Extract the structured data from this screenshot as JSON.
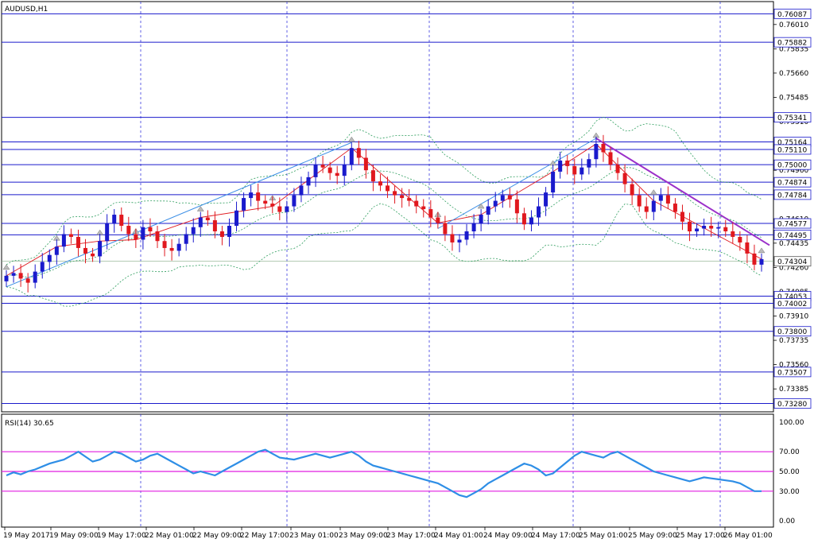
{
  "window": {
    "title": "AUDUSD,H1"
  },
  "chart_data": {
    "type": "candlestick",
    "symbol": "AUDUSD",
    "timeframe": "H1",
    "ylim": [
      0.7322,
      0.76175
    ],
    "grid": true,
    "price_ticks": [
      "0.76010",
      "0.75835",
      "0.75660",
      "0.75485",
      "0.75310",
      "0.75135",
      "0.74960",
      "0.74785",
      "0.74610",
      "0.74435",
      "0.74260",
      "0.74085",
      "0.73910",
      "0.73735",
      "0.73560",
      "0.73385"
    ],
    "levels": [
      {
        "label": "0.76087",
        "value": 0.76087
      },
      {
        "label": "0.75882",
        "value": 0.75882
      },
      {
        "label": "0.75341",
        "value": 0.75341
      },
      {
        "label": "0.75164",
        "value": 0.75164
      },
      {
        "label": "0.75110",
        "value": 0.7511
      },
      {
        "label": "0.75000",
        "value": 0.75
      },
      {
        "label": "0.74874",
        "value": 0.74874
      },
      {
        "label": "0.74784",
        "value": 0.74784
      },
      {
        "label": "0.74577",
        "value": 0.74577
      },
      {
        "label": "0.74495",
        "value": 0.74495
      },
      {
        "label": "0.74053",
        "value": 0.74053
      },
      {
        "label": "0.74002",
        "value": 0.74002
      },
      {
        "label": "0.73800",
        "value": 0.738
      },
      {
        "label": "0.73507",
        "value": 0.73507
      },
      {
        "label": "0.73280",
        "value": 0.7328
      }
    ],
    "current_price": {
      "label": "0.74304",
      "value": 0.74304
    },
    "time_labels": [
      "19 May 2017",
      "19 May 09:00",
      "19 May 17:00",
      "22 May 01:00",
      "22 May 09:00",
      "22 May 17:00",
      "23 May 01:00",
      "23 May 09:00",
      "23 May 17:00",
      "24 May 01:00",
      "24 May 09:00",
      "24 May 17:00",
      "25 May 01:00",
      "25 May 09:00",
      "25 May 17:00",
      "26 May 01:00"
    ],
    "closes": [
      0.742,
      0.7422,
      0.7418,
      0.7415,
      0.7423,
      0.743,
      0.7435,
      0.7441,
      0.745,
      0.7448,
      0.744,
      0.7436,
      0.7434,
      0.7445,
      0.7458,
      0.7464,
      0.7456,
      0.745,
      0.7446,
      0.7455,
      0.7452,
      0.7445,
      0.744,
      0.7438,
      0.7443,
      0.745,
      0.7455,
      0.7462,
      0.746,
      0.7452,
      0.7448,
      0.7456,
      0.7467,
      0.7476,
      0.748,
      0.7474,
      0.7472,
      0.747,
      0.7466,
      0.747,
      0.7478,
      0.7485,
      0.7491,
      0.75,
      0.7498,
      0.7494,
      0.7492,
      0.75,
      0.7512,
      0.7505,
      0.7496,
      0.7488,
      0.7485,
      0.7481,
      0.7478,
      0.7476,
      0.7474,
      0.747,
      0.7468,
      0.7462,
      0.7458,
      0.745,
      0.7444,
      0.7446,
      0.7452,
      0.7458,
      0.7464,
      0.747,
      0.7474,
      0.7478,
      0.7475,
      0.7465,
      0.7457,
      0.7462,
      0.747,
      0.748,
      0.7495,
      0.7503,
      0.7499,
      0.7493,
      0.7498,
      0.7504,
      0.7515,
      0.7509,
      0.75,
      0.7494,
      0.7486,
      0.7478,
      0.747,
      0.7466,
      0.7474,
      0.7478,
      0.7472,
      0.7466,
      0.7459,
      0.7452,
      0.7454,
      0.7456,
      0.7454,
      0.7455,
      0.7452,
      0.7448,
      0.7444,
      0.7436,
      0.7428,
      0.7432
    ],
    "rsi": {
      "label": "RSI(14) 30.65",
      "ylim": [
        0,
        100
      ],
      "ticks": [
        "100.00",
        "70.00",
        "50.00",
        "30.00",
        "0.00"
      ],
      "levels": [
        70,
        50,
        30
      ],
      "values": [
        46,
        49,
        47,
        50,
        52,
        55,
        58,
        60,
        62,
        66,
        70,
        65,
        60,
        62,
        66,
        70,
        68,
        64,
        60,
        62,
        66,
        68,
        64,
        60,
        56,
        52,
        48,
        50,
        48,
        46,
        50,
        54,
        58,
        62,
        66,
        70,
        72,
        68,
        64,
        63,
        62,
        64,
        66,
        68,
        66,
        64,
        66,
        68,
        70,
        66,
        60,
        56,
        54,
        52,
        50,
        48,
        46,
        44,
        42,
        40,
        38,
        34,
        30,
        26,
        24,
        28,
        32,
        38,
        42,
        46,
        50,
        54,
        58,
        56,
        52,
        46,
        48,
        54,
        60,
        66,
        70,
        68,
        66,
        64,
        68,
        70,
        66,
        62,
        58,
        54,
        50,
        48,
        46,
        44,
        42,
        40,
        42,
        44,
        43,
        42,
        41,
        40,
        38,
        34,
        30,
        30
      ]
    }
  }
}
